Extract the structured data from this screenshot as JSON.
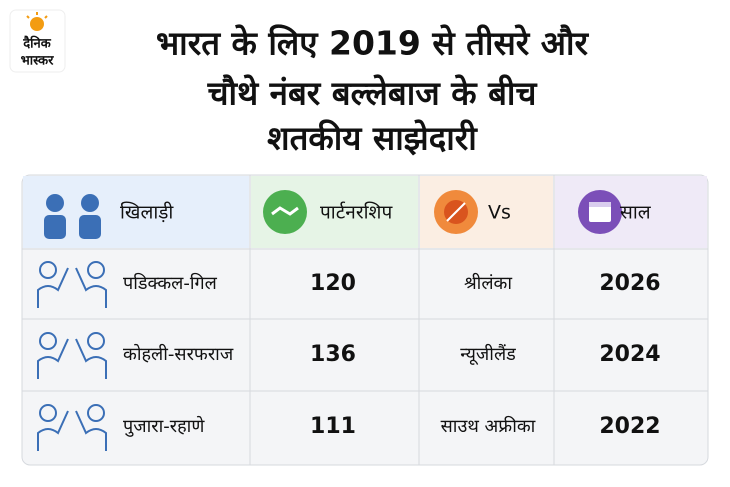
{
  "logo": {
    "lines": [
      "दैनिक",
      "भास्कर"
    ]
  },
  "header": {
    "title_lines": [
      "भारत के लिए 2019 से तीसरे और",
      "चौथे नंबर बल्लेबाज के बीच",
      "शतकीय साझेदारी"
    ]
  },
  "table": {
    "columns": [
      "खिलाड़ी",
      "पार्टनरशिप",
      "Vs",
      "साल"
    ],
    "rows": [
      [
        "पडिक्कल-गिल",
        120,
        "श्रीलंका",
        2026
      ],
      [
        "कोहली-सरफराज",
        136,
        "न्यूजीलैंड",
        2024
      ],
      [
        "पुजारा-रहाणे",
        111,
        "साउथ अफ्रीका",
        2022
      ]
    ]
  }
}
